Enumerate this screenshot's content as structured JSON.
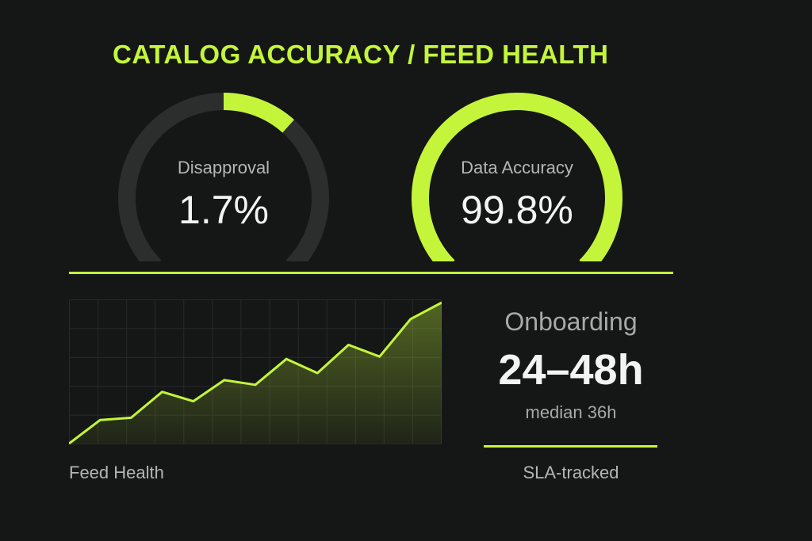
{
  "page": {
    "title": "CATALOG ACCURACY / FEED HEALTH"
  },
  "colors": {
    "accent": "#c4f53b",
    "background": "#151716",
    "track": "#2b2e2d"
  },
  "gauges": [
    {
      "label": "Disapproval",
      "value": "1.7%",
      "fill_fraction": 0.28
    },
    {
      "label": "Data Accuracy",
      "value": "99.8%",
      "fill_fraction": 1.0
    }
  ],
  "feed_health": {
    "label": "Feed Health",
    "chart_data": {
      "type": "area",
      "y": [
        0,
        10,
        11,
        22,
        18,
        27,
        25,
        36,
        30,
        42,
        37,
        53,
        60
      ],
      "grid": true
    }
  },
  "onboarding": {
    "label": "Onboarding",
    "value": "24–48h",
    "median": "median 36h",
    "footnote": "SLA-tracked"
  }
}
